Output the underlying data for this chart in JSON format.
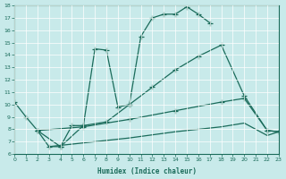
{
  "xlabel": "Humidex (Indice chaleur)",
  "xlim": [
    0,
    23
  ],
  "ylim": [
    6,
    18
  ],
  "xticks": [
    0,
    1,
    2,
    3,
    4,
    5,
    6,
    7,
    8,
    9,
    10,
    11,
    12,
    13,
    14,
    15,
    16,
    17,
    18,
    19,
    20,
    21,
    22,
    23
  ],
  "yticks": [
    6,
    7,
    8,
    9,
    10,
    11,
    12,
    13,
    14,
    15,
    16,
    17,
    18
  ],
  "bg_color": "#c8eaea",
  "line_color": "#1a6b5a",
  "grid_color": "#ffffff",
  "curve1_x": [
    0,
    1,
    2,
    3,
    4,
    5,
    6,
    7,
    8,
    9,
    10,
    11,
    12,
    13,
    14,
    15,
    16,
    17
  ],
  "curve1_y": [
    10.2,
    9.0,
    7.9,
    6.6,
    6.6,
    8.3,
    8.3,
    14.5,
    14.4,
    9.8,
    10.0,
    15.5,
    17.0,
    17.3,
    17.3,
    17.9,
    17.3,
    16.6
  ],
  "curve2_x": [
    2,
    4,
    6,
    8,
    10,
    12,
    14,
    16,
    18,
    20,
    22,
    23
  ],
  "curve2_y": [
    7.9,
    6.6,
    8.3,
    8.6,
    10.0,
    11.4,
    12.8,
    13.9,
    14.8,
    10.7,
    7.9,
    7.8
  ],
  "curve3_x": [
    2,
    6,
    10,
    14,
    18,
    20,
    22,
    23
  ],
  "curve3_y": [
    7.9,
    8.2,
    8.8,
    9.5,
    10.2,
    10.5,
    7.9,
    7.8
  ],
  "curve4_x": [
    3,
    6,
    10,
    14,
    18,
    20,
    22,
    23
  ],
  "curve4_y": [
    6.6,
    6.9,
    7.3,
    7.8,
    8.2,
    8.5,
    7.5,
    7.8
  ]
}
